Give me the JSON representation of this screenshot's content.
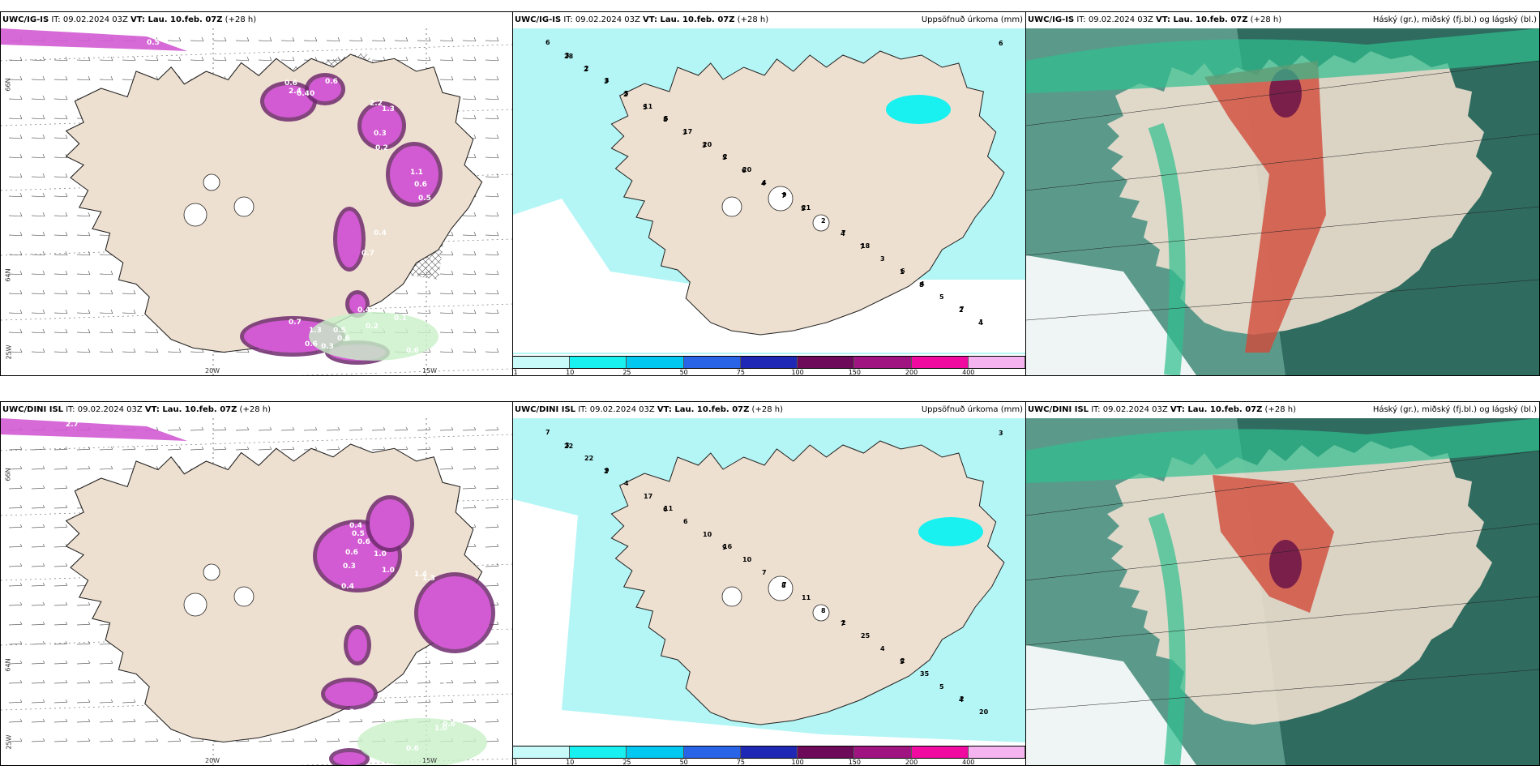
{
  "panels": [
    {
      "id": "p1",
      "model": "UWC/IG-IS",
      "it": "IT: 09.02.2024 03Z",
      "vt_label": "VT:",
      "vt": "Lau. 10.feb. 07Z",
      "lead": "(+28 h)",
      "right": "",
      "lon_labels": [
        "20W",
        "15W"
      ],
      "lat_labels": [
        "66N",
        "64N",
        "25W"
      ]
    },
    {
      "id": "p2",
      "model": "UWC/IG-IS",
      "it": "IT: 09.02.2024 03Z",
      "vt_label": "VT:",
      "vt": "Lau. 10.feb. 07Z",
      "lead": "(+28 h)",
      "right": "Uppsöfnuð úrkoma (mm)",
      "values": [
        "6",
        "3",
        "5",
        "2",
        "9",
        "7",
        "6",
        "7",
        "3",
        "5",
        "17",
        "20",
        "21",
        "18",
        "4",
        "1",
        "2",
        "11",
        "20",
        "4",
        "2",
        "3",
        "5",
        "6",
        "3",
        "8",
        "5",
        "7",
        "4",
        "1",
        "2",
        "28",
        "2",
        "3",
        "6",
        "5",
        "7",
        "8",
        "4",
        "2",
        "5",
        "3",
        "4"
      ]
    },
    {
      "id": "p3",
      "model": "UWC/IG-IS",
      "it": "IT: 09.02.2024 03Z",
      "vt_label": "VT:",
      "vt": "Lau. 10.feb. 07Z",
      "lead": "(+28 h)",
      "right": "Háský (gr.), miðský (fj.bl.) og lágský (bl.)"
    },
    {
      "id": "p4",
      "model": "UWC/DINI ISL",
      "it": "IT: 09.02.2024 03Z",
      "vt_label": "VT:",
      "vt": "Lau. 10.feb. 07Z",
      "lead": "(+28 h)",
      "right": "",
      "lon_labels": [
        "20W",
        "15W"
      ],
      "lat_labels": [
        "66N",
        "64N",
        "25W"
      ]
    },
    {
      "id": "p5",
      "model": "UWC/DINI ISL",
      "it": "IT: 09.02.2024 03Z",
      "vt_label": "VT:",
      "vt": "Lau. 10.feb. 07Z",
      "lead": "(+28 h)",
      "right": "Uppsöfnuð úrkoma (mm)",
      "values": [
        "7",
        "9",
        "11",
        "16",
        "7",
        "2",
        "2",
        "2",
        "3",
        "4",
        "6",
        "10",
        "11",
        "25",
        "35",
        "20",
        "22",
        "17",
        "10",
        "7",
        "8",
        "4",
        "5",
        "3",
        "2",
        "6",
        "9",
        "8",
        "7",
        "5",
        "4",
        "22"
      ]
    },
    {
      "id": "p6",
      "model": "UWC/DINI ISL",
      "it": "IT: 09.02.2024 03Z",
      "vt_label": "VT:",
      "vt": "Lau. 10.feb. 07Z",
      "lead": "(+28 h)",
      "right": "Háský (gr.), miðský (fj.bl.) og lágský (bl.)"
    }
  ],
  "legend": {
    "ticks": [
      "1",
      "10",
      "25",
      "50",
      "75",
      "100",
      "150",
      "200",
      "400"
    ],
    "colors": [
      "#c8fafa",
      "#19f0f0",
      "#00c8f0",
      "#2a64e6",
      "#1e28b4",
      "#6e0a5a",
      "#a01482",
      "#f00aa0",
      "#f5b4f0"
    ]
  },
  "snow_values_top": [
    "1.7",
    "0.5",
    "0.6",
    "2.4",
    "0.40",
    "0.6",
    "2.2",
    "1.3",
    "0.3",
    "0.2",
    "1.1",
    "0.6",
    "0.5",
    "0.4",
    "0.7",
    "0.7",
    "1.3",
    "0.6",
    "0.3",
    "0.5",
    "0.4",
    "0.2",
    "0.6",
    "1.2",
    "0.6",
    "0.1"
  ],
  "snow_values_bottom": [
    "2.1",
    "2.0",
    "2.7",
    "0.4",
    "0.5",
    "0.6",
    "1.0",
    "1.4",
    "1.3",
    "0.4",
    "0.3",
    "0.6",
    "1.0",
    "3.8",
    "1.2",
    "0.7",
    "1.3",
    "0.7",
    "0.6",
    "3.3",
    "1.0",
    "0.6"
  ],
  "colors": {
    "land": "#eee0d0",
    "cyan_light": "#b4f5f5",
    "cyan": "#19f0f0",
    "magenta": "#d25ad2",
    "magenta_dark": "#6e2a6e",
    "green_light": "#c8f0c8",
    "cloud_high": "#2fbf8f",
    "cloud_dark": "#2f6b5f",
    "red": "#d24a3a"
  }
}
